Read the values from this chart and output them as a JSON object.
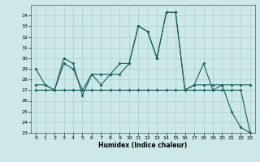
{
  "background_color": "#cce8e8",
  "grid_color": "#aacccc",
  "line_color": "#1a6060",
  "xlabel": "Humidex (Indice chaleur)",
  "xlim_min": -0.5,
  "xlim_max": 23.5,
  "ylim_min": 23,
  "ylim_max": 35,
  "yticks": [
    23,
    24,
    25,
    26,
    27,
    28,
    29,
    30,
    31,
    32,
    33,
    34
  ],
  "xticks": [
    0,
    1,
    2,
    3,
    4,
    5,
    6,
    7,
    8,
    9,
    10,
    11,
    12,
    13,
    14,
    15,
    16,
    17,
    18,
    19,
    20,
    21,
    22,
    23
  ],
  "line1_x": [
    0,
    1,
    2,
    3,
    4,
    5,
    6,
    7,
    8,
    9,
    10,
    11,
    12,
    13,
    14,
    15,
    16,
    17,
    18,
    19,
    20,
    21,
    22,
    23
  ],
  "line1_y": [
    29.0,
    27.5,
    27.0,
    30.0,
    29.5,
    26.5,
    28.5,
    27.5,
    28.5,
    29.5,
    29.5,
    33.0,
    32.5,
    30.0,
    34.3,
    34.3,
    27.0,
    27.5,
    29.5,
    27.0,
    27.5,
    25.0,
    23.5,
    23.0
  ],
  "line2_x": [
    0,
    1,
    2,
    3,
    4,
    5,
    6,
    7,
    8,
    9,
    10,
    11,
    12,
    13,
    14,
    15,
    16,
    17,
    18,
    19,
    20,
    21,
    22,
    23
  ],
  "line2_y": [
    27.5,
    27.5,
    27.0,
    29.5,
    29.0,
    27.0,
    28.5,
    28.5,
    28.5,
    28.5,
    29.5,
    33.0,
    32.5,
    30.0,
    34.3,
    34.3,
    27.0,
    27.5,
    27.5,
    27.5,
    27.5,
    27.5,
    27.5,
    27.5
  ],
  "line3_x": [
    0,
    1,
    2,
    3,
    4,
    5,
    6,
    7,
    8,
    9,
    10,
    11,
    12,
    13,
    14,
    15,
    16,
    17,
    18,
    19,
    20,
    21,
    22,
    23
  ],
  "line3_y": [
    27.0,
    27.0,
    27.0,
    27.0,
    27.0,
    27.0,
    27.0,
    27.0,
    27.0,
    27.0,
    27.0,
    27.0,
    27.0,
    27.0,
    27.0,
    27.0,
    27.0,
    27.0,
    27.0,
    27.0,
    27.0,
    27.0,
    27.0,
    23.0
  ]
}
